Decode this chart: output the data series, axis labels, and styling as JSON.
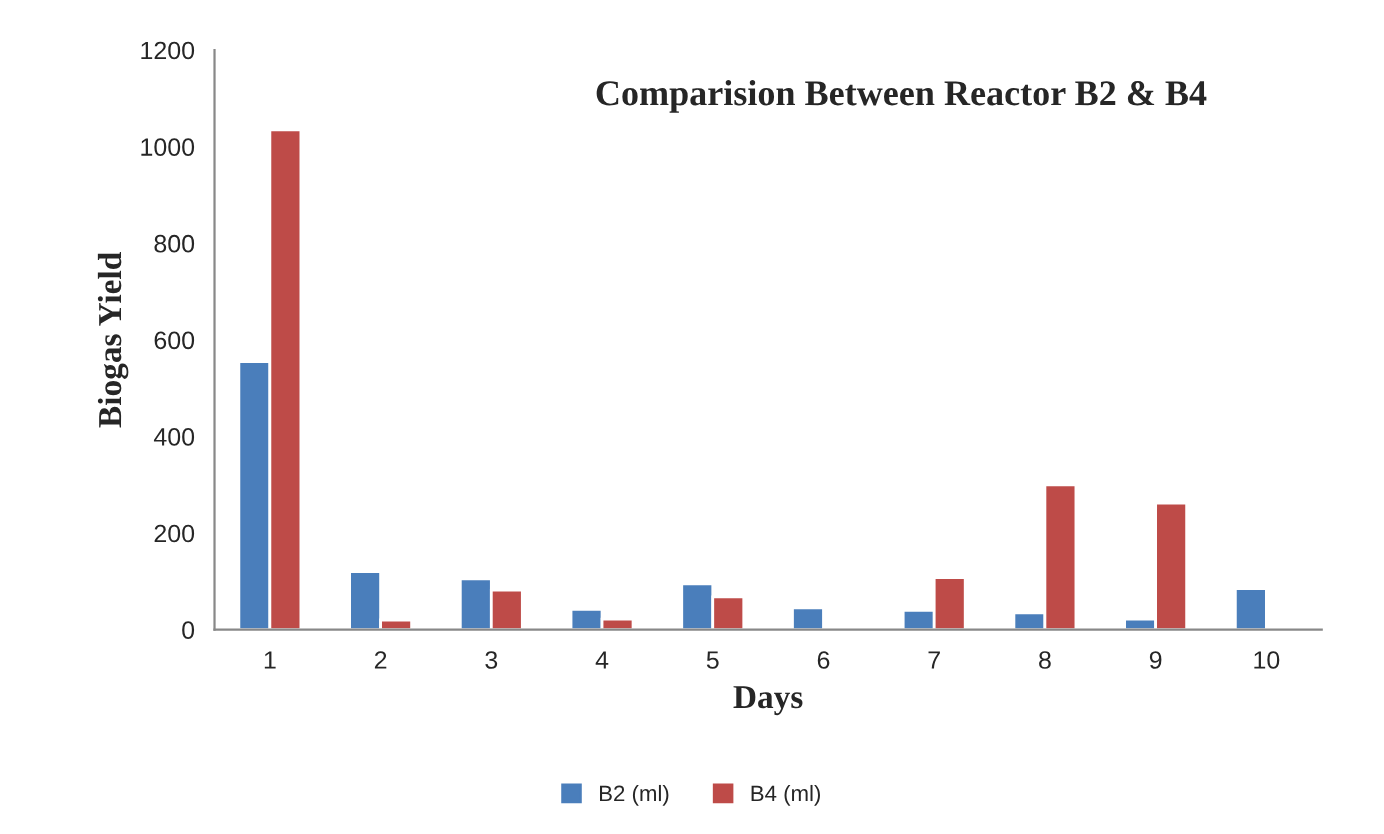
{
  "chart_data": {
    "type": "bar",
    "title": "Comparision Between Reactor B2 & B4",
    "xlabel": "Days",
    "ylabel": "Biogas Yield",
    "categories": [
      "1",
      "2",
      "3",
      "4",
      "5",
      "6",
      "7",
      "8",
      "9",
      "10"
    ],
    "series": [
      {
        "name": "B2 (ml)",
        "color": "#4a7ebb",
        "values": [
          555,
          120,
          105,
          42,
          95,
          45,
          40,
          35,
          22,
          85
        ]
      },
      {
        "name": "B4 (ml)",
        "color": "#be4b48",
        "values": [
          1035,
          20,
          82,
          22,
          68,
          null,
          108,
          300,
          262,
          null
        ]
      }
    ],
    "ylim": [
      0,
      1200
    ],
    "yticks": [
      0,
      200,
      400,
      600,
      800,
      1000,
      1200
    ],
    "grid": false,
    "legend": "bottom"
  }
}
